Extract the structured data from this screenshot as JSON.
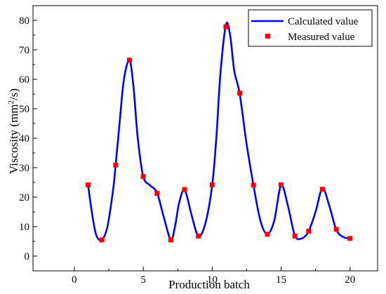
{
  "chart_data": {
    "type": "line",
    "xlabel": "Production batch",
    "ylabel_main": "Viscosity (mm",
    "ylabel_sup": "2",
    "ylabel_end": "/s)",
    "xlim": [
      -3,
      22
    ],
    "ylim": [
      -5,
      85
    ],
    "xticks": [
      0,
      5,
      10,
      15,
      20
    ],
    "yticks": [
      0,
      10,
      20,
      30,
      40,
      50,
      60,
      70,
      80
    ],
    "grid": false,
    "legend_position": "top-right",
    "series": [
      {
        "name": "Calculated value",
        "style": "line",
        "color": "#0000FF",
        "x": [
          1,
          1.3,
          1.6,
          2,
          2.4,
          2.8,
          3,
          3.3,
          3.6,
          4,
          4.3,
          4.6,
          5,
          5.5,
          6,
          6.5,
          7,
          7.3,
          7.6,
          8,
          8.5,
          9,
          9.5,
          10,
          10.3,
          10.6,
          11,
          11.3,
          11.6,
          12,
          12.5,
          13,
          13.5,
          14,
          14.5,
          15,
          15.5,
          16,
          16.5,
          17,
          17.5,
          18,
          18.5,
          19,
          19.5,
          20
        ],
        "y": [
          24,
          14,
          7,
          5.5,
          10,
          22,
          31,
          46,
          60,
          66.5,
          57,
          40,
          27,
          24,
          21.5,
          13,
          5.5,
          10,
          18,
          22.5,
          14,
          6.8,
          11,
          24,
          40,
          62,
          78.5,
          75,
          63,
          55,
          38,
          24,
          12,
          7.5,
          12,
          24,
          17,
          7,
          6,
          8.5,
          15,
          23,
          17,
          9,
          6.5,
          6
        ]
      },
      {
        "name": "Measured value",
        "style": "marker",
        "color": "#FF0000",
        "x": [
          1,
          2,
          3,
          4,
          5,
          6,
          7,
          8,
          9,
          10,
          11,
          12,
          13,
          14,
          15,
          16,
          17,
          18,
          19,
          20
        ],
        "y": [
          24.2,
          5.5,
          30.9,
          66.5,
          27,
          21.3,
          5.5,
          22.6,
          6.8,
          24.2,
          77.8,
          55.3,
          24.1,
          7.4,
          24.2,
          6.8,
          8.4,
          22.7,
          9.1,
          6
        ]
      }
    ]
  }
}
